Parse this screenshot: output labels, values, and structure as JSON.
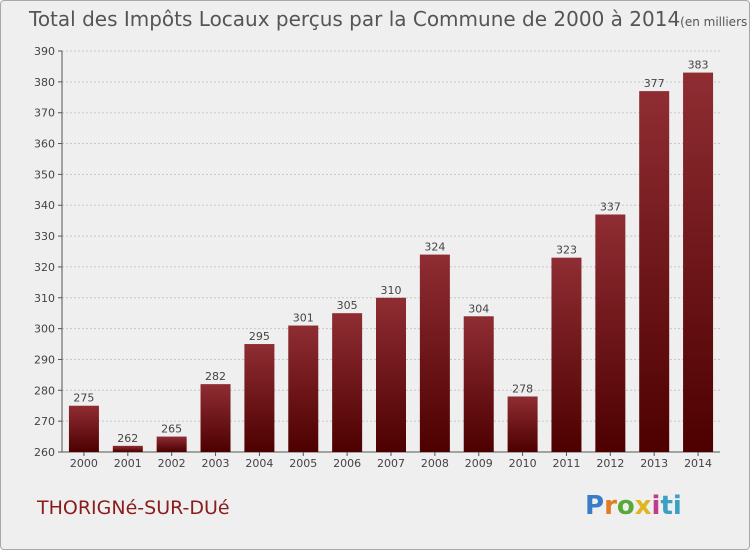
{
  "chart_data": {
    "type": "bar",
    "title": "Total des Impôts Locaux perçus par la Commune de 2000 à 2014",
    "unit_note": "(en milliers d'€)",
    "categories": [
      "2000",
      "2001",
      "2002",
      "2003",
      "2004",
      "2005",
      "2006",
      "2007",
      "2008",
      "2009",
      "2010",
      "2011",
      "2012",
      "2013",
      "2014"
    ],
    "values": [
      275,
      262,
      265,
      282,
      295,
      301,
      305,
      310,
      324,
      304,
      278,
      323,
      337,
      377,
      383
    ],
    "ylim": [
      260,
      390
    ],
    "yticks": [
      260,
      270,
      280,
      290,
      300,
      310,
      320,
      330,
      340,
      350,
      360,
      370,
      380,
      390
    ],
    "grid": true,
    "xlabel": "",
    "ylabel": "",
    "bar_color_top": "#8f2d33",
    "bar_color_bottom": "#4d0000"
  },
  "commune": {
    "name": "THORIGNé-SUR-DUé"
  },
  "branding": {
    "logo_letters": [
      "P",
      "r",
      "o",
      "x",
      "i",
      "ti"
    ]
  }
}
